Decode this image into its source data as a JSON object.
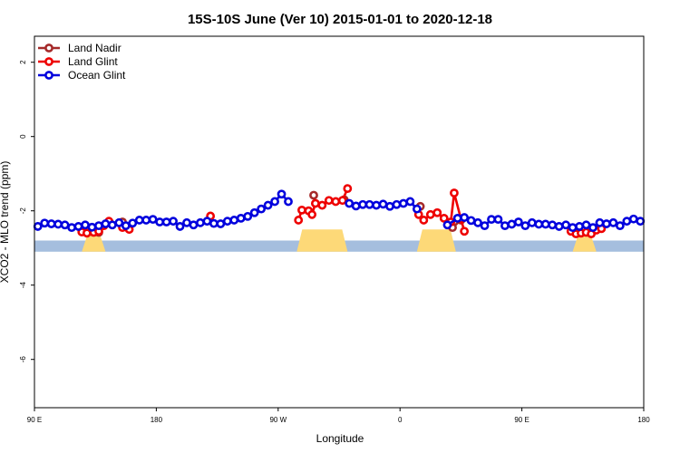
{
  "chart_data": {
    "type": "line",
    "title": "15S-10S June (Ver 10)   2015-01-01 to 2020-12-18",
    "xlabel": "Longitude",
    "ylabel": "XCO2 - MLO trend (ppm)",
    "xlim": [
      0,
      360
    ],
    "ylim": [
      -7.3,
      2.7
    ],
    "x_ticks": [
      {
        "value": 0,
        "label": "90 E"
      },
      {
        "value": 72,
        "label": "180"
      },
      {
        "value": 144,
        "label": "90 W"
      },
      {
        "value": 216,
        "label": "0"
      },
      {
        "value": 288,
        "label": "90 E"
      },
      {
        "value": 360,
        "label": "180"
      }
    ],
    "y_ticks": [
      {
        "value": 2,
        "label": "2"
      },
      {
        "value": 0,
        "label": "0"
      },
      {
        "value": -2,
        "label": "-2"
      },
      {
        "value": -4,
        "label": "-4"
      },
      {
        "value": -6,
        "label": "-6"
      }
    ],
    "legend_position": "top-left",
    "land_band": {
      "y_top": -2.8,
      "y_bottom": -3.1,
      "color": "#a5bede"
    },
    "land_color": "#fdd978",
    "land_segments": [
      {
        "x_start": 28,
        "x_end": 42,
        "height": 0.15
      },
      {
        "x_start": 155,
        "x_end": 185,
        "height": 0.3
      },
      {
        "x_start": 226,
        "x_end": 249,
        "height": 0.3
      },
      {
        "x_start": 318,
        "x_end": 332,
        "height": 0.15
      }
    ],
    "series": [
      {
        "name": "Land Nadir",
        "color": "#a52a2a",
        "x": [
          38,
          52,
          165,
          183,
          228,
          247,
          252
        ],
        "y": [
          -2.58,
          -2.3,
          -1.58,
          -1.7,
          -1.88,
          -2.45,
          -2.25
        ]
      },
      {
        "name": "Land Glint",
        "color": "#ee0000",
        "x": [
          28,
          31,
          35,
          38,
          41,
          44,
          52,
          56,
          104,
          156,
          158,
          162,
          164,
          166,
          170,
          174,
          178,
          182,
          185,
          227,
          230,
          234,
          238,
          242,
          246,
          248,
          252,
          254,
          317,
          320,
          323,
          326,
          329,
          332,
          335
        ],
        "y": [
          -2.57,
          -2.6,
          -2.58,
          -2.55,
          -2.4,
          -2.28,
          -2.45,
          -2.5,
          -2.14,
          -2.25,
          -1.98,
          -2.0,
          -2.1,
          -1.8,
          -1.85,
          -1.72,
          -1.75,
          -1.72,
          -1.4,
          -2.1,
          -2.25,
          -2.1,
          -2.05,
          -2.2,
          -2.3,
          -1.52,
          -2.22,
          -2.55,
          -2.55,
          -2.62,
          -2.6,
          -2.58,
          -2.62,
          -2.52,
          -2.48
        ]
      },
      {
        "name": "Ocean Glint",
        "color": "#0000dd",
        "x": [
          2,
          6,
          10,
          14,
          18,
          22,
          26,
          30,
          34,
          38,
          42,
          46,
          50,
          54,
          58,
          62,
          66,
          70,
          74,
          78,
          82,
          86,
          90,
          94,
          98,
          102,
          106,
          110,
          114,
          118,
          122,
          126,
          130,
          134,
          138,
          142,
          146,
          150,
          186,
          190,
          194,
          198,
          202,
          206,
          210,
          214,
          218,
          222,
          226,
          244,
          250,
          254,
          258,
          262,
          266,
          270,
          274,
          278,
          282,
          286,
          290,
          294,
          298,
          302,
          306,
          310,
          314,
          318,
          322,
          326,
          330,
          334,
          338,
          342,
          346,
          350,
          354,
          358
        ],
        "y": [
          -2.42,
          -2.33,
          -2.35,
          -2.36,
          -2.38,
          -2.45,
          -2.42,
          -2.38,
          -2.44,
          -2.4,
          -2.35,
          -2.38,
          -2.32,
          -2.4,
          -2.33,
          -2.25,
          -2.25,
          -2.23,
          -2.3,
          -2.3,
          -2.28,
          -2.42,
          -2.32,
          -2.38,
          -2.32,
          -2.28,
          -2.34,
          -2.35,
          -2.28,
          -2.25,
          -2.2,
          -2.15,
          -2.05,
          -1.95,
          -1.85,
          -1.75,
          -1.55,
          -1.75,
          -1.8,
          -1.87,
          -1.83,
          -1.83,
          -1.85,
          -1.82,
          -1.88,
          -1.83,
          -1.8,
          -1.75,
          -1.95,
          -2.38,
          -2.2,
          -2.18,
          -2.26,
          -2.32,
          -2.4,
          -2.23,
          -2.23,
          -2.4,
          -2.36,
          -2.3,
          -2.4,
          -2.32,
          -2.36,
          -2.36,
          -2.38,
          -2.42,
          -2.38,
          -2.45,
          -2.42,
          -2.38,
          -2.45,
          -2.32,
          -2.35,
          -2.32,
          -2.4,
          -2.28,
          -2.22,
          -2.28
        ]
      }
    ]
  }
}
